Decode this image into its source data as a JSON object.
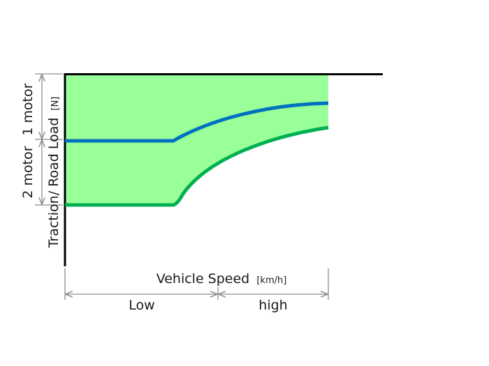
{
  "diagram": {
    "y_axis": {
      "label": "Traction/ Road Load",
      "unit": "[N]"
    },
    "x_axis": {
      "label": "Vehicle Speed",
      "unit": "[km/h]"
    },
    "zones_y": {
      "top": "1 motor",
      "bottom": "2 motor"
    },
    "zones_x": {
      "left": "Low",
      "right": "high"
    },
    "colors": {
      "fill": "#99ff99",
      "one_motor_curve": "#0070c0",
      "two_motor_curve": "#00b050",
      "axis": "#000000",
      "dimension": "#8c8c8c"
    }
  }
}
